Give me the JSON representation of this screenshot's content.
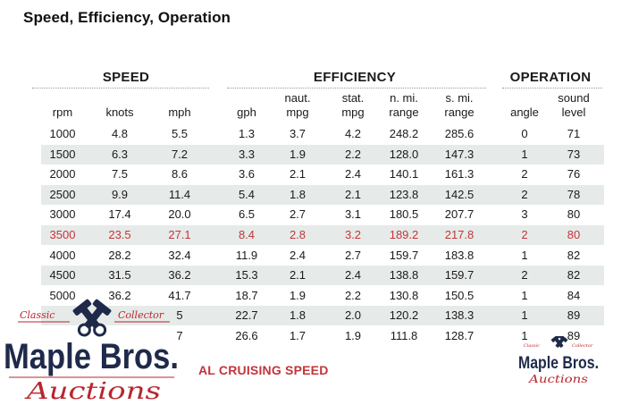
{
  "title": "Speed, Efficiency, Operation",
  "groups": {
    "speed": "SPEED",
    "efficiency": "EFFICIENCY",
    "operation": "OPERATION"
  },
  "columns": [
    {
      "line1": "",
      "line2": "rpm"
    },
    {
      "line1": "",
      "line2": "knots"
    },
    {
      "line1": "",
      "line2": "mph"
    },
    {
      "line1": "",
      "line2": "gph"
    },
    {
      "line1": "naut.",
      "line2": "mpg"
    },
    {
      "line1": "stat.",
      "line2": "mpg"
    },
    {
      "line1": "n. mi.",
      "line2": "range"
    },
    {
      "line1": "s. mi.",
      "line2": "range"
    },
    {
      "line1": "",
      "line2": "angle"
    },
    {
      "line1": "sound",
      "line2": "level"
    }
  ],
  "rows": [
    [
      "1000",
      "4.8",
      "5.5",
      "1.3",
      "3.7",
      "4.2",
      "248.2",
      "285.6",
      "0",
      "71"
    ],
    [
      "1500",
      "6.3",
      "7.2",
      "3.3",
      "1.9",
      "2.2",
      "128.0",
      "147.3",
      "1",
      "73"
    ],
    [
      "2000",
      "7.5",
      "8.6",
      "3.6",
      "2.1",
      "2.4",
      "140.1",
      "161.3",
      "2",
      "76"
    ],
    [
      "2500",
      "9.9",
      "11.4",
      "5.4",
      "1.8",
      "2.1",
      "123.8",
      "142.5",
      "2",
      "78"
    ],
    [
      "3000",
      "17.4",
      "20.0",
      "6.5",
      "2.7",
      "3.1",
      "180.5",
      "207.7",
      "3",
      "80"
    ],
    [
      "3500",
      "23.5",
      "27.1",
      "8.4",
      "2.8",
      "3.2",
      "189.2",
      "217.8",
      "2",
      "80"
    ],
    [
      "4000",
      "28.2",
      "32.4",
      "11.9",
      "2.4",
      "2.7",
      "159.7",
      "183.8",
      "1",
      "82"
    ],
    [
      "4500",
      "31.5",
      "36.2",
      "15.3",
      "2.1",
      "2.4",
      "138.8",
      "159.7",
      "2",
      "82"
    ],
    [
      "5000",
      "36.2",
      "41.7",
      "18.7",
      "1.9",
      "2.2",
      "130.8",
      "150.5",
      "1",
      "84"
    ],
    [
      "",
      "",
      "5",
      "22.7",
      "1.8",
      "2.0",
      "120.2",
      "138.3",
      "1",
      "89"
    ],
    [
      "",
      "",
      "7",
      "26.6",
      "1.7",
      "1.9",
      "111.8",
      "128.7",
      "1",
      "89"
    ]
  ],
  "highlight_row_index": 5,
  "footnote": "AL CRUISING SPEED",
  "logo": {
    "top_left": "Classic",
    "top_right": "Collector",
    "brand": "Maple Bros.",
    "script": "Auctions"
  },
  "colors": {
    "highlight": "#c4343b",
    "shade": "#e6ebe9",
    "logo_navy": "#1f2a4a",
    "logo_red": "#b8262d"
  }
}
